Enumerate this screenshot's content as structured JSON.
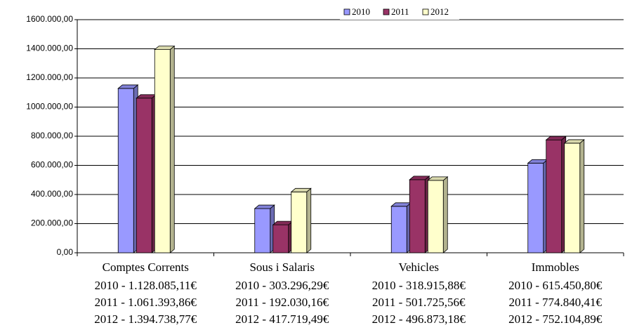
{
  "chart_data": {
    "type": "bar",
    "categories": [
      "Comptes Corrents",
      "Sous i Salaris",
      "Vehicles",
      "Immobles"
    ],
    "series": [
      {
        "name": "2010",
        "color": "#9999ff",
        "values": [
          1128085.11,
          303296.29,
          318915.88,
          615450.8
        ],
        "value_labels": [
          "2010 - 1.128.085,11€",
          "2010 - 303.296,29€",
          "2010 - 318.915,88€",
          "2010 - 615.450,80€"
        ]
      },
      {
        "name": "2011",
        "color": "#993366",
        "values": [
          1061393.86,
          192030.16,
          501725.56,
          774840.41
        ],
        "value_labels": [
          "2011 - 1.061.393,86€",
          "2011 - 192.030,16€",
          "2011 - 501.725,56€",
          "2011 - 774.840,41€"
        ]
      },
      {
        "name": "2012",
        "color": "#ffffcc",
        "values": [
          1394738.77,
          417719.49,
          496873.18,
          752104.89
        ],
        "value_labels": [
          "2012 - 1.394.738,77€",
          "2012 - 417.719,49€",
          "2012 - 496.873,18€",
          "2012 - 752.104,89€"
        ]
      }
    ],
    "ylim": [
      0,
      1600000
    ],
    "yticks": [
      {
        "value": 0,
        "label": "0,00"
      },
      {
        "value": 200000,
        "label": "200.000,00"
      },
      {
        "value": 400000,
        "label": "400.000,00"
      },
      {
        "value": 600000,
        "label": "600.000,00"
      },
      {
        "value": 800000,
        "label": "800.000,00"
      },
      {
        "value": 1000000,
        "label": "1000.000,00"
      },
      {
        "value": 1200000,
        "label": "1200.000,00"
      },
      {
        "value": 1400000,
        "label": "1400.000,00"
      },
      {
        "value": 1600000,
        "label": "1600.000,00"
      }
    ],
    "grid": true,
    "legend": "top"
  }
}
